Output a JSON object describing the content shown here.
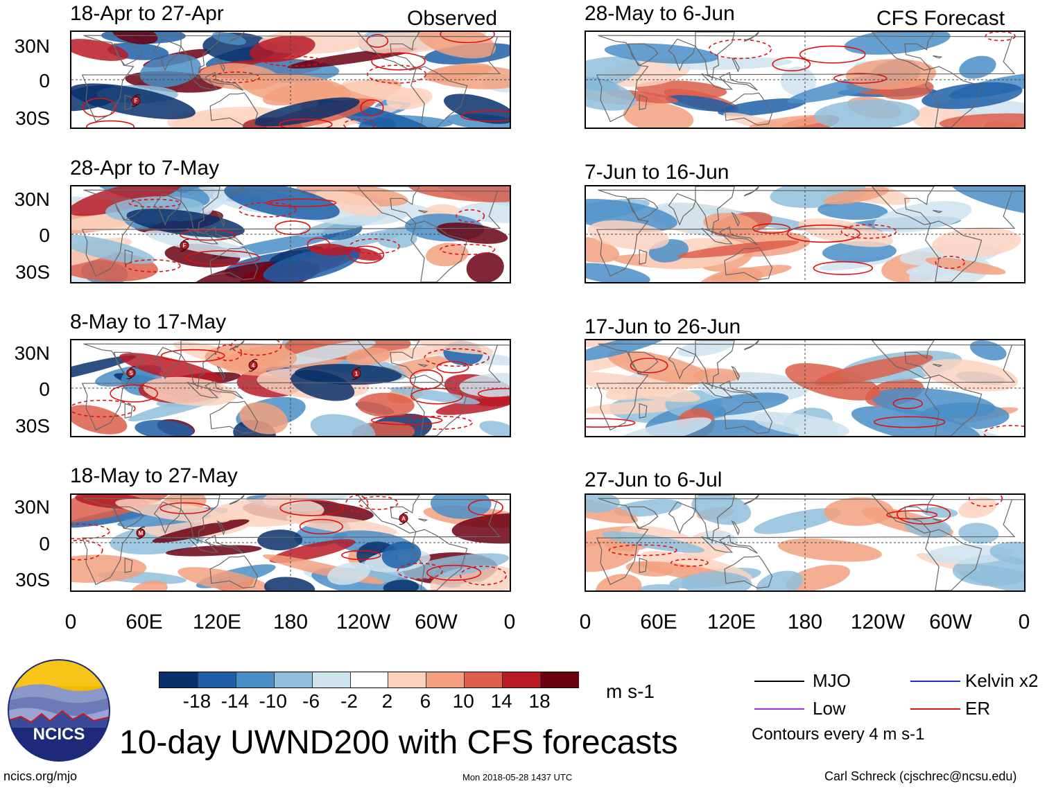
{
  "header": {
    "observed_label": "Observed",
    "forecast_label": "CFS Forecast"
  },
  "panels": {
    "left": [
      {
        "period": "18-Apr to 27-Apr",
        "storms": [
          "F"
        ]
      },
      {
        "period": "28-Apr to 7-May",
        "storms": [
          "F"
        ]
      },
      {
        "period": "8-May to 17-May",
        "storms": [
          "S",
          "4",
          "1"
        ]
      },
      {
        "period": "18-May to 27-May",
        "storms": [
          "M",
          "A"
        ]
      }
    ],
    "right": [
      {
        "period": "28-May to 6-Jun"
      },
      {
        "period": "7-Jun to 16-Jun"
      },
      {
        "period": "17-Jun to 26-Jun"
      },
      {
        "period": "27-Jun to 6-Jul"
      }
    ]
  },
  "axes": {
    "lat_labels": [
      "30N",
      "0",
      "30S"
    ],
    "lon_labels": [
      "0",
      "60E",
      "120E",
      "180",
      "120W",
      "60W",
      "0"
    ]
  },
  "colorbar": {
    "unit": "m s-1",
    "ticks": [
      "-18",
      "-14",
      "-10",
      "-6",
      "-2",
      "2",
      "6",
      "10",
      "14",
      "18"
    ],
    "colors": [
      "#08306b",
      "#1f5fa8",
      "#4a8ec7",
      "#8fbedb",
      "#cfe3ef",
      "#ffffff",
      "#fcd2bf",
      "#f2a07f",
      "#dd5e4a",
      "#b81a26",
      "#6b0010"
    ]
  },
  "legend": {
    "items": [
      {
        "label": "MJO",
        "color": "#000000"
      },
      {
        "label": "Kelvin x2",
        "color": "#1a2fcc"
      },
      {
        "label": "Low",
        "color": "#9b30e0"
      },
      {
        "label": "ER",
        "color": "#e01010"
      }
    ],
    "note": "Contours every 4 m s-1"
  },
  "logo": {
    "text": "NCICS"
  },
  "main_title": "10-day UWND200 with CFS forecasts",
  "footer": {
    "url": "ncics.org/mjo",
    "timestamp": "Mon 2018-05-28 1437 UTC",
    "credit": "Carl Schreck (cjschrec@ncsu.edu)"
  }
}
